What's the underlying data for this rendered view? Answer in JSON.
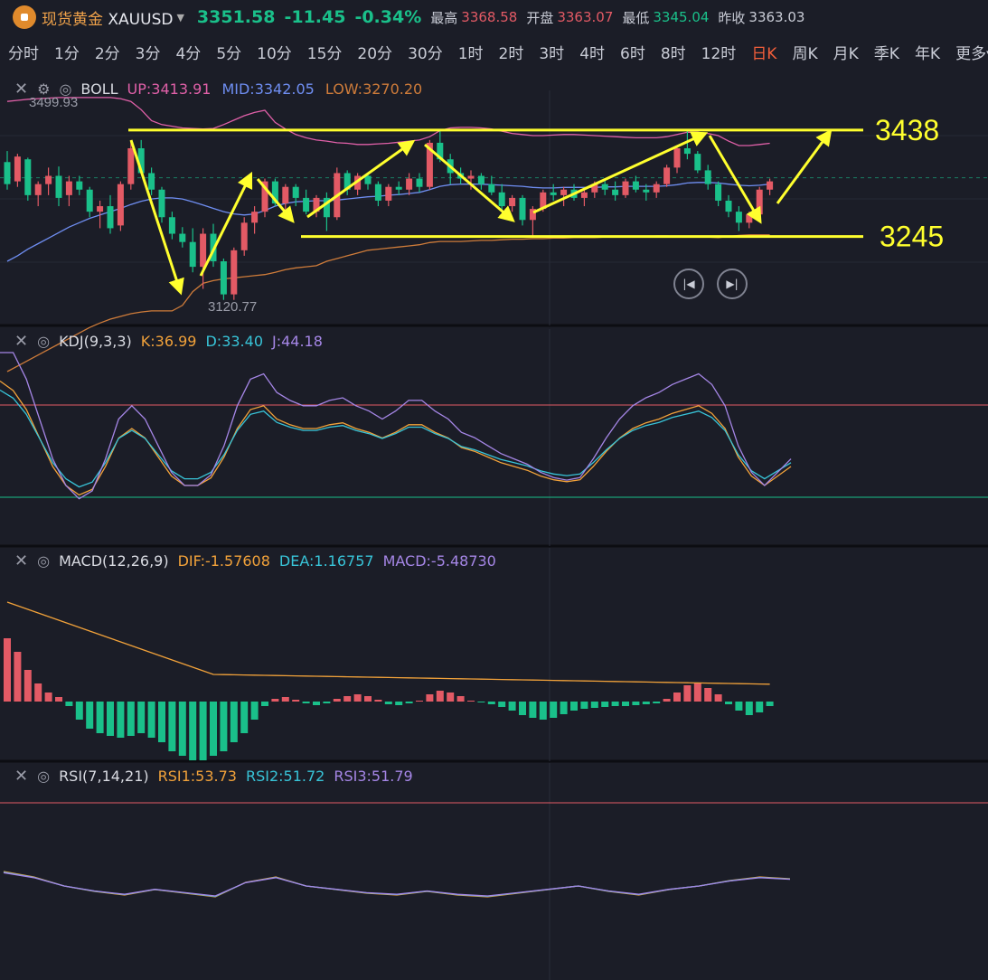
{
  "header": {
    "name": "现货黄金",
    "symbol": "XAUUSD",
    "price": "3351.58",
    "change": "-11.45",
    "change_pct": "-0.34%",
    "high_label": "最高",
    "high": "3368.58",
    "open_label": "开盘",
    "open": "3363.07",
    "low_label": "最低",
    "low": "3345.04",
    "prev_close_label": "昨收",
    "prev_close": "3363.03"
  },
  "periods": [
    "分时",
    "1分",
    "2分",
    "3分",
    "4分",
    "5分",
    "10分",
    "15分",
    "20分",
    "30分",
    "1时",
    "2时",
    "3时",
    "4时",
    "6时",
    "8时",
    "12时",
    "日K",
    "周K",
    "月K",
    "季K",
    "年K",
    "更多"
  ],
  "active_period": "日K",
  "colors": {
    "up": "#e35a65",
    "down": "#1ac08a",
    "annotation": "#ffff2e"
  },
  "boll": {
    "name": "BOLL",
    "up": "UP:3413.91",
    "mid": "MID:3342.05",
    "low": "LOW:3270.20",
    "max_label": "3499.93",
    "min_label": "3120.77"
  },
  "annotations": {
    "resistance": "3438",
    "support": "3245"
  },
  "kdj": {
    "name": "KDJ(9,3,3)",
    "k": "K:36.99",
    "d": "D:33.40",
    "j": "J:44.18"
  },
  "macd": {
    "name": "MACD(12,26,9)",
    "dif": "DIF:-1.57608",
    "dea": "DEA:1.16757",
    "macd": "MACD:-5.48730"
  },
  "rsi": {
    "name": "RSI(7,14,21)",
    "rsi1": "RSI1:53.73",
    "rsi2": "RSI2:51.72",
    "rsi3": "RSI3:51.79"
  },
  "chart_data": {
    "type": "candlestick",
    "price_range": [
      3100,
      3510
    ],
    "candles": [
      [
        3380,
        3400,
        3330,
        3340
      ],
      [
        3345,
        3395,
        3335,
        3390
      ],
      [
        3385,
        3388,
        3310,
        3320
      ],
      [
        3320,
        3345,
        3300,
        3340
      ],
      [
        3340,
        3370,
        3320,
        3355
      ],
      [
        3355,
        3372,
        3300,
        3315
      ],
      [
        3320,
        3355,
        3300,
        3345
      ],
      [
        3345,
        3355,
        3320,
        3330
      ],
      [
        3330,
        3335,
        3280,
        3290
      ],
      [
        3290,
        3310,
        3260,
        3300
      ],
      [
        3300,
        3320,
        3250,
        3260
      ],
      [
        3265,
        3345,
        3255,
        3340
      ],
      [
        3340,
        3420,
        3330,
        3405
      ],
      [
        3405,
        3420,
        3360,
        3360
      ],
      [
        3360,
        3370,
        3320,
        3330
      ],
      [
        3330,
        3335,
        3270,
        3280
      ],
      [
        3280,
        3290,
        3240,
        3250
      ],
      [
        3250,
        3262,
        3225,
        3235
      ],
      [
        3235,
        3260,
        3180,
        3190
      ],
      [
        3190,
        3260,
        3150,
        3250
      ],
      [
        3250,
        3268,
        3190,
        3200
      ],
      [
        3200,
        3205,
        3130,
        3140
      ],
      [
        3140,
        3225,
        3130,
        3220
      ],
      [
        3220,
        3280,
        3210,
        3270
      ],
      [
        3270,
        3300,
        3250,
        3290
      ],
      [
        3290,
        3350,
        3280,
        3345
      ],
      [
        3345,
        3350,
        3300,
        3305
      ],
      [
        3305,
        3340,
        3290,
        3335
      ],
      [
        3335,
        3340,
        3300,
        3315
      ],
      [
        3315,
        3330,
        3285,
        3290
      ],
      [
        3290,
        3320,
        3280,
        3315
      ],
      [
        3315,
        3325,
        3255,
        3280
      ],
      [
        3280,
        3370,
        3275,
        3360
      ],
      [
        3360,
        3365,
        3320,
        3330
      ],
      [
        3330,
        3360,
        3320,
        3355
      ],
      [
        3355,
        3360,
        3330,
        3340
      ],
      [
        3340,
        3345,
        3300,
        3310
      ],
      [
        3310,
        3340,
        3300,
        3335
      ],
      [
        3335,
        3345,
        3320,
        3330
      ],
      [
        3330,
        3360,
        3320,
        3350
      ],
      [
        3350,
        3360,
        3325,
        3335
      ],
      [
        3335,
        3420,
        3330,
        3415
      ],
      [
        3415,
        3440,
        3380,
        3385
      ],
      [
        3385,
        3395,
        3340,
        3360
      ],
      [
        3360,
        3370,
        3340,
        3350
      ],
      [
        3350,
        3365,
        3330,
        3355
      ],
      [
        3355,
        3360,
        3330,
        3340
      ],
      [
        3340,
        3355,
        3320,
        3325
      ],
      [
        3325,
        3340,
        3290,
        3300
      ],
      [
        3300,
        3320,
        3290,
        3315
      ],
      [
        3315,
        3320,
        3265,
        3275
      ],
      [
        3275,
        3300,
        3245,
        3295
      ],
      [
        3295,
        3330,
        3290,
        3325
      ],
      [
        3325,
        3340,
        3310,
        3320
      ],
      [
        3320,
        3335,
        3300,
        3330
      ],
      [
        3330,
        3340,
        3310,
        3315
      ],
      [
        3315,
        3330,
        3300,
        3325
      ],
      [
        3325,
        3345,
        3315,
        3340
      ],
      [
        3340,
        3350,
        3320,
        3330
      ],
      [
        3330,
        3345,
        3310,
        3320
      ],
      [
        3320,
        3350,
        3315,
        3345
      ],
      [
        3345,
        3355,
        3325,
        3330
      ],
      [
        3330,
        3340,
        3310,
        3325
      ],
      [
        3325,
        3345,
        3315,
        3340
      ],
      [
        3340,
        3375,
        3335,
        3370
      ],
      [
        3370,
        3410,
        3360,
        3405
      ],
      [
        3405,
        3440,
        3385,
        3395
      ],
      [
        3395,
        3400,
        3360,
        3365
      ],
      [
        3365,
        3375,
        3330,
        3340
      ],
      [
        3340,
        3345,
        3300,
        3310
      ],
      [
        3310,
        3320,
        3280,
        3290
      ],
      [
        3290,
        3300,
        3255,
        3270
      ],
      [
        3270,
        3290,
        3260,
        3285
      ],
      [
        3285,
        3335,
        3280,
        3330
      ],
      [
        3330,
        3350,
        3320,
        3345
      ]
    ],
    "boll_upper": [
      3490,
      3492,
      3494,
      3495,
      3496,
      3497,
      3497,
      3497,
      3497,
      3497,
      3497,
      3495,
      3490,
      3475,
      3455,
      3448,
      3445,
      3442,
      3441,
      3440,
      3441,
      3448,
      3456,
      3464,
      3470,
      3474,
      3452,
      3440,
      3430,
      3424,
      3420,
      3418,
      3415,
      3414,
      3412,
      3412,
      3413,
      3414,
      3416,
      3418,
      3420,
      3426,
      3437,
      3442,
      3443,
      3443,
      3442,
      3440,
      3436,
      3432,
      3430,
      3428,
      3428,
      3429,
      3430,
      3430,
      3429,
      3428,
      3427,
      3426,
      3425,
      3424,
      3424,
      3424,
      3426,
      3430,
      3434,
      3434,
      3432,
      3428,
      3418,
      3410,
      3410,
      3412,
      3414
    ],
    "boll_mid": [
      3200,
      3210,
      3222,
      3232,
      3242,
      3252,
      3262,
      3270,
      3278,
      3284,
      3290,
      3296,
      3303,
      3309,
      3313,
      3315,
      3315,
      3313,
      3308,
      3302,
      3296,
      3290,
      3286,
      3284,
      3286,
      3292,
      3300,
      3305,
      3308,
      3309,
      3310,
      3310,
      3311,
      3313,
      3315,
      3317,
      3318,
      3320,
      3321,
      3323,
      3325,
      3330,
      3336,
      3339,
      3340,
      3340,
      3340,
      3339,
      3338,
      3337,
      3336,
      3334,
      3333,
      3333,
      3334,
      3334,
      3334,
      3334,
      3335,
      3335,
      3336,
      3336,
      3336,
      3336,
      3337,
      3339,
      3342,
      3343,
      3343,
      3342,
      3340,
      3338,
      3337,
      3338,
      3340
    ],
    "boll_lower": [
      3000,
      3010,
      3020,
      3030,
      3040,
      3050,
      3060,
      3070,
      3080,
      3088,
      3095,
      3100,
      3105,
      3108,
      3110,
      3110,
      3110,
      3120,
      3145,
      3160,
      3165,
      3168,
      3170,
      3172,
      3174,
      3176,
      3180,
      3185,
      3188,
      3190,
      3192,
      3200,
      3205,
      3210,
      3215,
      3220,
      3222,
      3224,
      3226,
      3228,
      3230,
      3234,
      3236,
      3236,
      3236,
      3237,
      3238,
      3238,
      3239,
      3240,
      3240,
      3241,
      3241,
      3242,
      3242,
      3243,
      3243,
      3243,
      3244,
      3244,
      3245,
      3245,
      3245,
      3246,
      3246,
      3245,
      3244,
      3244,
      3244,
      3243,
      3245,
      3247,
      3248,
      3248,
      3248
    ],
    "macd_hist": [
      70,
      55,
      35,
      20,
      10,
      5,
      -5,
      -20,
      -30,
      -35,
      -38,
      -40,
      -38,
      -35,
      -40,
      -45,
      -55,
      -60,
      -65,
      -65,
      -60,
      -55,
      -45,
      -35,
      -20,
      -5,
      3,
      5,
      2,
      -2,
      -4,
      -2,
      3,
      6,
      8,
      6,
      2,
      -3,
      -4,
      -2,
      1,
      8,
      12,
      10,
      6,
      1,
      -1,
      -3,
      -6,
      -10,
      -15,
      -18,
      -20,
      -18,
      -14,
      -10,
      -8,
      -7,
      -6,
      -5,
      -5,
      -4,
      -3,
      -2,
      3,
      10,
      18,
      20,
      15,
      8,
      -3,
      -10,
      -15,
      -12,
      -5
    ],
    "kdj_k": [
      85,
      80,
      70,
      55,
      40,
      30,
      25,
      28,
      40,
      55,
      60,
      55,
      45,
      35,
      30,
      30,
      34,
      45,
      60,
      70,
      72,
      65,
      62,
      60,
      60,
      62,
      63,
      60,
      58,
      55,
      58,
      62,
      62,
      58,
      55,
      50,
      48,
      45,
      42,
      40,
      38,
      35,
      33,
      32,
      33,
      40,
      48,
      55,
      60,
      63,
      65,
      68,
      70,
      72,
      68,
      60,
      45,
      35,
      30,
      35,
      40
    ],
    "rsi1": [
      58,
      55,
      50,
      47,
      45,
      48,
      46,
      44,
      52,
      55,
      50,
      48,
      46,
      45,
      47,
      45,
      44,
      46,
      48,
      50,
      47,
      45,
      48,
      50,
      53,
      55,
      54
    ]
  }
}
